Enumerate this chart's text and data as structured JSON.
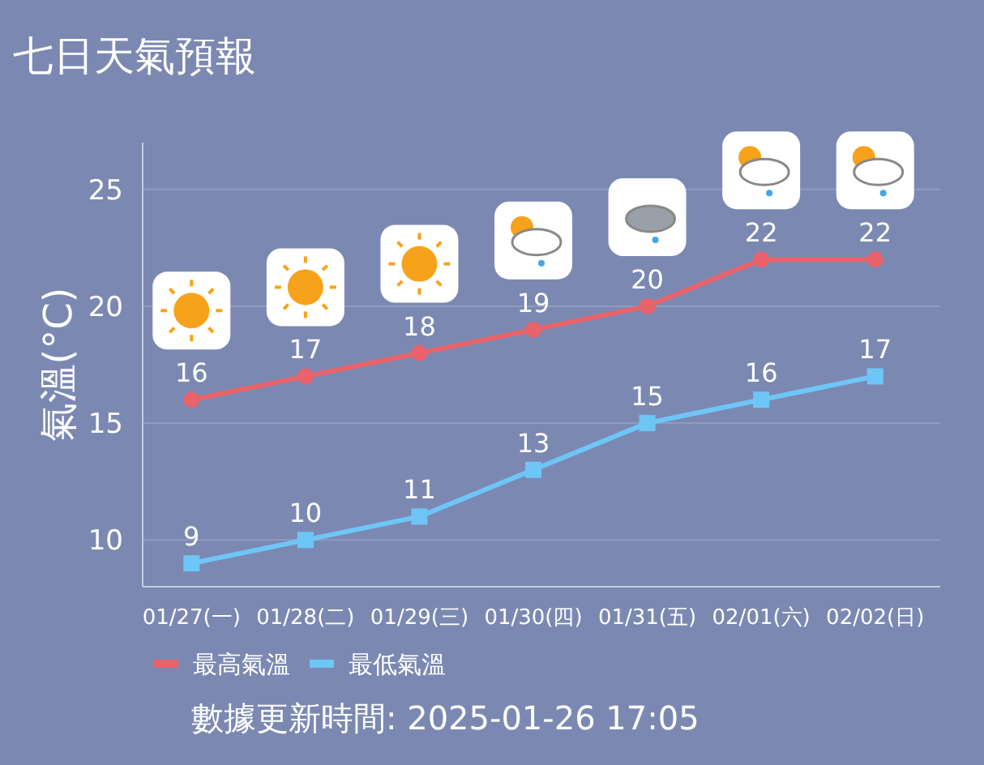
{
  "chart_data": {
    "type": "line",
    "title": "七日天氣預報",
    "ylabel": "氣溫(°C)",
    "categories": [
      "01/27(一)",
      "01/28(二)",
      "01/29(三)",
      "01/30(四)",
      "01/31(五)",
      "02/01(六)",
      "02/02(日)"
    ],
    "series": [
      {
        "name": "最高氣溫",
        "color": "#e8636b",
        "marker": "circle",
        "values": [
          16,
          17,
          18,
          19,
          20,
          22,
          22
        ]
      },
      {
        "name": "最低氣溫",
        "color": "#6ec6f7",
        "marker": "square",
        "values": [
          9,
          10,
          11,
          13,
          15,
          16,
          17
        ]
      }
    ],
    "ylim": [
      8,
      27
    ],
    "yticks": [
      10,
      15,
      20,
      25
    ],
    "grid": "y",
    "data_labels": true,
    "legend": "bottom left",
    "annotations": [
      "數據更新時間: 2025-01-26 17:05"
    ]
  }
}
